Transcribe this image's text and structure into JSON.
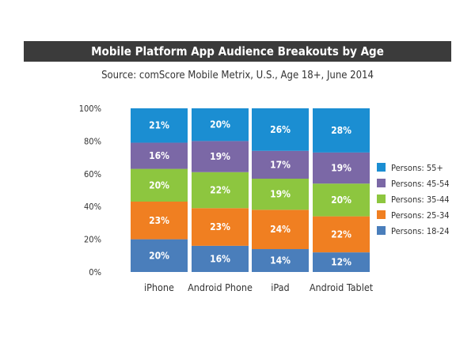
{
  "chart_data": {
    "type": "bar",
    "stacked": true,
    "title": "Mobile Platform App Audience Breakouts by Age",
    "subtitle": "Source: comScore Mobile Metrix, U.S., Age 18+, June 2014",
    "categories": [
      "iPhone",
      "Android Phone",
      "iPad",
      "Android Tablet"
    ],
    "ylim": [
      0,
      100
    ],
    "yticks": [
      "0%",
      "20%",
      "40%",
      "60%",
      "80%",
      "100%"
    ],
    "legend_position": "right",
    "series": [
      {
        "name": "Persons: 18-24",
        "color": "#4a7ebb",
        "values": [
          20,
          16,
          14,
          12
        ],
        "labels": [
          "20%",
          "16%",
          "14%",
          "12%"
        ]
      },
      {
        "name": "Persons: 25-34",
        "color": "#f07f21",
        "values": [
          23,
          23,
          24,
          22
        ],
        "labels": [
          "23%",
          "23%",
          "24%",
          "22%"
        ]
      },
      {
        "name": "Persons: 35-44",
        "color": "#8dc63f",
        "values": [
          20,
          22,
          19,
          20
        ],
        "labels": [
          "20%",
          "22%",
          "19%",
          "20%"
        ]
      },
      {
        "name": "Persons: 45-54",
        "color": "#7b68a6",
        "values": [
          16,
          19,
          17,
          19
        ],
        "labels": [
          "16%",
          "19%",
          "17%",
          "19%"
        ]
      },
      {
        "name": "Persons: 55+",
        "color": "#1b8ed2",
        "values": [
          21,
          20,
          26,
          28
        ],
        "labels": [
          "21%",
          "20%",
          "26%",
          "28%"
        ]
      }
    ]
  }
}
